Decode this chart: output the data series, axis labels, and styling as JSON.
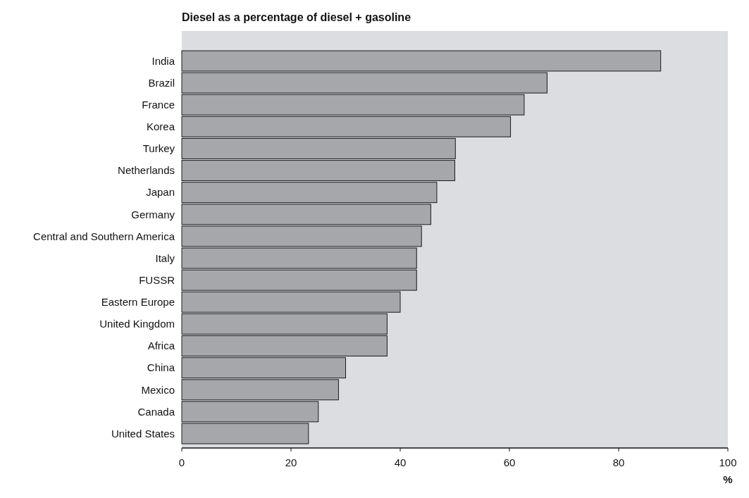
{
  "chart_data": {
    "type": "bar",
    "orientation": "horizontal",
    "title": "Diesel as a percentage of diesel + gasoline",
    "xlabel": "%",
    "categories": [
      "India",
      "Brazil",
      "France",
      "Korea",
      "Turkey",
      "Netherlands",
      "Japan",
      "Germany",
      "Central and Southern America",
      "Italy",
      "FUSSR",
      "Eastern Europe",
      "United Kingdom",
      "Africa",
      "China",
      "Mexico",
      "Canada",
      "United States"
    ],
    "values": [
      87.7,
      66.9,
      62.7,
      60.2,
      50.1,
      50,
      46.7,
      45.6,
      43.9,
      43,
      43,
      40,
      37.6,
      37.6,
      30,
      28.7,
      25,
      23.2
    ],
    "color": "#a6a7ab",
    "xlim": [
      0,
      100
    ],
    "xticks": [
      0,
      20,
      40,
      60,
      80,
      100
    ],
    "grid": false
  }
}
